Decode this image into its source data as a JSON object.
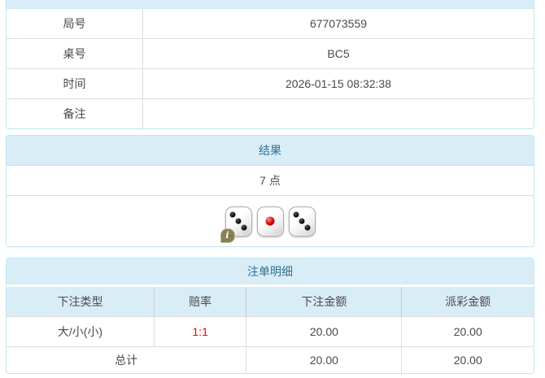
{
  "colors": {
    "panel_border": "#bce8f1",
    "heading_bg": "#d9edf7",
    "heading_text": "#31708f",
    "cell_border": "#dddddd",
    "odds_text": "#ff0000",
    "page_bg": "#ffffff"
  },
  "info_table": {
    "rows": [
      {
        "label": "局号",
        "value": "677073559"
      },
      {
        "label": "桌号",
        "value": "BC5"
      },
      {
        "label": "时间",
        "value": "2026-01-15 08:32:38"
      },
      {
        "label": "备注",
        "value": ""
      }
    ]
  },
  "result_panel": {
    "title": "结果",
    "points": "7 点",
    "dice": [
      3,
      1,
      3
    ]
  },
  "bets_panel": {
    "title": "注单明细",
    "columns": [
      "下注类型",
      "赔率",
      "下注金额",
      "派彩金额"
    ],
    "rows": [
      {
        "type": "大/小(小)",
        "odds": "1:1",
        "bet_amount": "20.00",
        "payout": "20.00"
      }
    ],
    "total": {
      "label": "总计",
      "bet_amount": "20.00",
      "payout": "20.00"
    }
  },
  "icons": {
    "info_badge": "i"
  }
}
